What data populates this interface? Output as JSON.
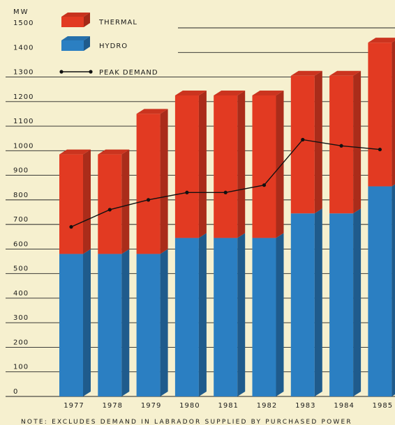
{
  "chart_data": {
    "type": "bar",
    "stacked": true,
    "three_d": true,
    "unit_label": "MW",
    "categories": [
      "1977",
      "1978",
      "1979",
      "1980",
      "1981",
      "1982",
      "1983",
      "1984",
      "1985"
    ],
    "series": [
      {
        "name": "HYDRO",
        "type": "bar",
        "color": "#2b7fc2",
        "values": [
          580,
          580,
          580,
          645,
          645,
          645,
          745,
          745,
          855
        ]
      },
      {
        "name": "THERMAL",
        "type": "bar",
        "color": "#e23a22",
        "values": [
          405,
          405,
          570,
          580,
          580,
          580,
          560,
          560,
          585
        ]
      },
      {
        "name": "PEAK DEMAND",
        "type": "line",
        "color": "#111111",
        "values": [
          690,
          760,
          800,
          830,
          830,
          860,
          1045,
          1020,
          1005
        ]
      }
    ],
    "yticks": [
      0,
      100,
      200,
      300,
      400,
      500,
      600,
      700,
      800,
      900,
      1000,
      1100,
      1200,
      1300,
      1400,
      1500
    ],
    "ylim": [
      0,
      1500
    ],
    "grid": true,
    "legend_position": "top-left",
    "note": "NOTE: EXCLUDES DEMAND IN LABRADOR SUPPLIED BY PURCHASED POWER"
  }
}
